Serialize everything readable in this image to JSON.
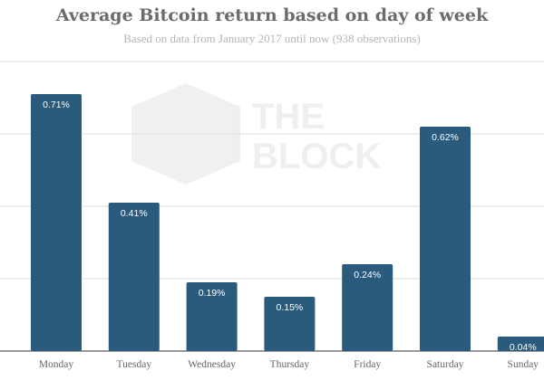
{
  "watermark": {
    "line1": "THE",
    "line2": "BLOCK"
  },
  "chart_data": {
    "type": "bar",
    "title": "Average Bitcoin return based on day of week",
    "subtitle": "Based on data from January 2017 until now (938 observations)",
    "xlabel": "",
    "ylabel": "",
    "categories": [
      "Monday",
      "Tuesday",
      "Wednesday",
      "Thursday",
      "Friday",
      "Saturday",
      "Sunday"
    ],
    "values": [
      0.71,
      0.41,
      0.19,
      0.15,
      0.24,
      0.62,
      0.04
    ],
    "data_labels": [
      "0.71%",
      "0.41%",
      "0.19%",
      "0.15%",
      "0.24%",
      "0.62%",
      "0.04%"
    ],
    "ylim": [
      0,
      0.8
    ],
    "gridlines": [
      0,
      0.2,
      0.4,
      0.6,
      0.8
    ],
    "grid": true,
    "bar_color": "#2a5a7c",
    "legend": "none"
  }
}
